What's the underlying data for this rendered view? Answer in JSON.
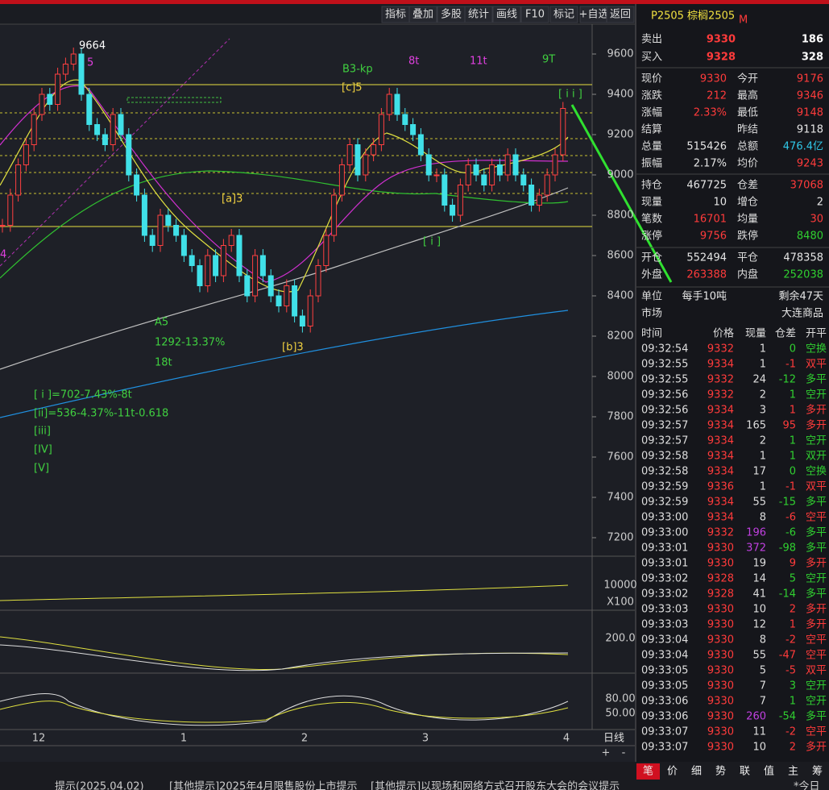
{
  "toolbar": [
    "指标",
    "叠加",
    "多股",
    "统计",
    "画线",
    "F10",
    "标记",
    "+自选",
    "返回"
  ],
  "symbol": "P2505 棕榈2505",
  "symbol_tag": "M",
  "chart": {
    "type": "candlestick",
    "high_label": "9664",
    "closes": [
      8750,
      8900,
      9050,
      9150,
      9300,
      9400,
      9350,
      9500,
      9550,
      9600,
      9400,
      9250,
      9200,
      9150,
      9300,
      9200,
      9000,
      8900,
      8700,
      8650,
      8800,
      8750,
      8700,
      8600,
      8550,
      8450,
      8600,
      8500,
      8650,
      8700,
      8500,
      8400,
      8600,
      8500,
      8400,
      8350,
      8450,
      8300,
      8250,
      8400,
      8550,
      8700,
      8900,
      9050,
      9150,
      9000,
      9100,
      9150,
      9300,
      9400,
      9300,
      9250,
      9200,
      9100,
      9000,
      9000,
      8850,
      8800,
      8950,
      9050,
      9000,
      8950,
      9050,
      9000,
      9100,
      9000,
      8950,
      8850,
      8900,
      9000,
      9100,
      9330
    ],
    "ylim": [
      7108,
      9748
    ],
    "yticks": [
      9600,
      9400,
      9200,
      9000,
      8800,
      8600,
      8400,
      8200,
      8000,
      7800,
      7600,
      7400,
      7200
    ],
    "xlabels": [
      "12",
      "1",
      "2",
      "3",
      "4"
    ],
    "annotations": [
      {
        "text": "5",
        "color": "#e040e0"
      },
      {
        "text": "B3-kp",
        "color": "#40d040"
      },
      {
        "text": "[c]5",
        "color": "#f0d040"
      },
      {
        "text": "8t",
        "color": "#e040e0"
      },
      {
        "text": "11t",
        "color": "#e040e0"
      },
      {
        "text": "9T",
        "color": "#40d040"
      },
      {
        "text": "[ i i ]",
        "color": "#40d040"
      },
      {
        "text": "[a]3",
        "color": "#f0d040"
      },
      {
        "text": "[ i ]",
        "color": "#40d040"
      },
      {
        "text": "A5",
        "color": "#40d040"
      },
      {
        "text": "1292-13.37%",
        "color": "#40d040"
      },
      {
        "text": "18t",
        "color": "#40d040"
      },
      {
        "text": "[b]3",
        "color": "#f0d040"
      },
      {
        "text": "4",
        "color": "#e040e0"
      },
      {
        "text": "[ i ]=702-7.43%-8t",
        "color": "#40d040"
      },
      {
        "text": "[ii]=536-4.37%-11t-0.618",
        "color": "#40d040"
      },
      {
        "text": "[iii]",
        "color": "#40d040"
      },
      {
        "text": "[IV]",
        "color": "#40d040"
      },
      {
        "text": "[V]",
        "color": "#40d040"
      }
    ],
    "sub_labels": [
      "10000",
      "X100",
      "200.0",
      "80.00",
      "50.00"
    ],
    "period": "日线"
  },
  "quote": {
    "book": [
      {
        "label": "卖出",
        "price": "9330",
        "vol": "186"
      },
      {
        "label": "买入",
        "price": "9328",
        "vol": "328"
      }
    ],
    "rows": [
      [
        {
          "l": "现价",
          "v": "9330",
          "c": "r"
        },
        {
          "l": "今开",
          "v": "9176",
          "c": "r"
        }
      ],
      [
        {
          "l": "涨跌",
          "v": "212",
          "c": "r"
        },
        {
          "l": "最高",
          "v": "9346",
          "c": "r"
        }
      ],
      [
        {
          "l": "涨幅",
          "v": "2.33%",
          "c": "r"
        },
        {
          "l": "最低",
          "v": "9148",
          "c": "r"
        }
      ],
      [
        {
          "l": "结算",
          "v": "",
          "c": "w"
        },
        {
          "l": "昨结",
          "v": "9118",
          "c": "w"
        }
      ],
      [
        {
          "l": "总量",
          "v": "515426",
          "c": "w"
        },
        {
          "l": "总额",
          "v": "476.4亿",
          "c": "c"
        }
      ],
      [
        {
          "l": "振幅",
          "v": "2.17%",
          "c": "w"
        },
        {
          "l": "均价",
          "v": "9243",
          "c": "r"
        }
      ],
      [
        {
          "l": "持仓",
          "v": "467725",
          "c": "w"
        },
        {
          "l": "仓差",
          "v": "37068",
          "c": "r"
        }
      ],
      [
        {
          "l": "现量",
          "v": "10",
          "c": "w"
        },
        {
          "l": "增仓",
          "v": "2",
          "c": "w"
        }
      ],
      [
        {
          "l": "笔数",
          "v": "16701",
          "c": "r"
        },
        {
          "l": "均量",
          "v": "30",
          "c": "r"
        }
      ],
      [
        {
          "l": "涨停",
          "v": "9756",
          "c": "r"
        },
        {
          "l": "跌停",
          "v": "8480",
          "c": "g"
        }
      ],
      [
        {
          "l": "开仓",
          "v": "552494",
          "c": "w"
        },
        {
          "l": "平仓",
          "v": "478358",
          "c": "w"
        }
      ],
      [
        {
          "l": "外盘",
          "v": "263388",
          "c": "r"
        },
        {
          "l": "内盘",
          "v": "252038",
          "c": "g"
        }
      ],
      [
        {
          "l": "单位",
          "v": "每手10吨",
          "c": "w"
        },
        {
          "l": "",
          "v": "剩余47天",
          "c": "w"
        }
      ],
      [
        {
          "l": "市场",
          "v": "",
          "c": "w"
        },
        {
          "l": "",
          "v": "大连商品",
          "c": "w"
        }
      ]
    ]
  },
  "trades": {
    "header": [
      "时间",
      "价格",
      "现量",
      "仓差",
      "开平"
    ],
    "rows": [
      [
        "09:32:54",
        "9332",
        "1",
        "0",
        "空换"
      ],
      [
        "09:32:55",
        "9334",
        "1",
        "-1",
        "双平"
      ],
      [
        "09:32:55",
        "9332",
        "24",
        "-12",
        "多平"
      ],
      [
        "09:32:56",
        "9332",
        "2",
        "1",
        "空开"
      ],
      [
        "09:32:56",
        "9334",
        "3",
        "1",
        "多开"
      ],
      [
        "09:32:57",
        "9334",
        "165",
        "95",
        "多开"
      ],
      [
        "09:32:57",
        "9334",
        "2",
        "1",
        "空开"
      ],
      [
        "09:32:58",
        "9334",
        "1",
        "1",
        "双开"
      ],
      [
        "09:32:58",
        "9334",
        "17",
        "0",
        "空换"
      ],
      [
        "09:32:59",
        "9336",
        "1",
        "-1",
        "双平"
      ],
      [
        "09:32:59",
        "9334",
        "55",
        "-15",
        "多平"
      ],
      [
        "09:33:00",
        "9334",
        "8",
        "-6",
        "空平"
      ],
      [
        "09:33:00",
        "9332",
        "196",
        "-6",
        "多平"
      ],
      [
        "09:33:01",
        "9330",
        "372",
        "-98",
        "多平"
      ],
      [
        "09:33:01",
        "9330",
        "19",
        "9",
        "多开"
      ],
      [
        "09:33:02",
        "9328",
        "14",
        "5",
        "空开"
      ],
      [
        "09:33:02",
        "9328",
        "41",
        "-14",
        "多平"
      ],
      [
        "09:33:03",
        "9330",
        "10",
        "2",
        "多开"
      ],
      [
        "09:33:03",
        "9330",
        "12",
        "1",
        "多开"
      ],
      [
        "09:33:04",
        "9330",
        "8",
        "-2",
        "空平"
      ],
      [
        "09:33:04",
        "9330",
        "55",
        "-47",
        "空平"
      ],
      [
        "09:33:05",
        "9330",
        "5",
        "-5",
        "双平"
      ],
      [
        "09:33:05",
        "9330",
        "7",
        "3",
        "空开"
      ],
      [
        "09:33:06",
        "9330",
        "7",
        "1",
        "空开"
      ],
      [
        "09:33:06",
        "9330",
        "260",
        "-54",
        "多平"
      ],
      [
        "09:33:07",
        "9330",
        "11",
        "-2",
        "空平"
      ],
      [
        "09:33:07",
        "9330",
        "10",
        "2",
        "多开"
      ]
    ]
  },
  "tabs": [
    "笔",
    "价",
    "细",
    "势",
    "联",
    "值",
    "主",
    "筹"
  ],
  "status": [
    "提示(2025.04.02)",
    "[其他提示]2025年4月限售股份上市提示",
    "[其他提示]以现场和网络方式召开股东大会的会议提示",
    "*今日"
  ]
}
